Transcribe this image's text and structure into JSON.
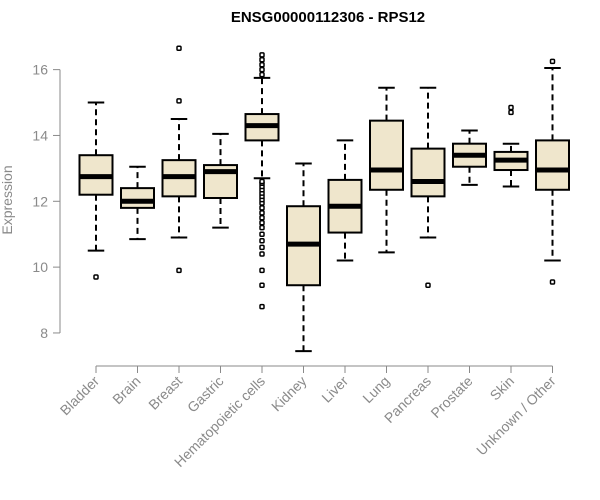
{
  "chart_data": {
    "type": "boxplot",
    "title": "ENSG00000112306 - RPS12",
    "xlabel": "",
    "ylabel": "Expression",
    "ylim": [
      7.3,
      16.9
    ],
    "yticks": [
      8,
      10,
      12,
      14,
      16
    ],
    "grid": false,
    "legend": "none",
    "colors": {
      "box_fill": "#efe6cc",
      "stroke": "#000000",
      "axis": "#8a8a8a"
    },
    "categories": [
      "Bladder",
      "Brain",
      "Breast",
      "Gastric",
      "Hematopoietic cells",
      "Kidney",
      "Liver",
      "Lung",
      "Pancreas",
      "Prostate",
      "Skin",
      "Unknown / Other"
    ],
    "boxes": [
      {
        "label": "Bladder",
        "whisker_low": 10.5,
        "q1": 12.2,
        "median": 12.75,
        "q3": 13.4,
        "whisker_high": 15.0,
        "outliers": [
          9.7
        ]
      },
      {
        "label": "Brain",
        "whisker_low": 10.85,
        "q1": 11.8,
        "median": 12.0,
        "q3": 12.4,
        "whisker_high": 13.05,
        "outliers": []
      },
      {
        "label": "Breast",
        "whisker_low": 10.9,
        "q1": 12.15,
        "median": 12.75,
        "q3": 13.25,
        "whisker_high": 14.5,
        "outliers": [
          9.9,
          15.05,
          16.65
        ]
      },
      {
        "label": "Gastric",
        "whisker_low": 11.2,
        "q1": 12.1,
        "median": 12.9,
        "q3": 13.1,
        "whisker_high": 14.05,
        "outliers": []
      },
      {
        "label": "Hematopoietic cells",
        "whisker_low": 12.7,
        "q1": 13.85,
        "median": 14.3,
        "q3": 14.65,
        "whisker_high": 15.75,
        "outliers": [
          8.8,
          9.45,
          9.9,
          10.4,
          10.6,
          10.8,
          11.0,
          11.2,
          11.35,
          11.5,
          11.65,
          11.8,
          11.95,
          12.05,
          12.15,
          12.25,
          12.35,
          12.45,
          12.55,
          12.6,
          15.85,
          16.0,
          16.15,
          16.3,
          16.45
        ]
      },
      {
        "label": "Kidney",
        "whisker_low": 7.45,
        "q1": 9.45,
        "median": 10.7,
        "q3": 11.85,
        "whisker_high": 13.15,
        "outliers": []
      },
      {
        "label": "Liver",
        "whisker_low": 10.2,
        "q1": 11.05,
        "median": 11.85,
        "q3": 12.65,
        "whisker_high": 13.85,
        "outliers": []
      },
      {
        "label": "Lung",
        "whisker_low": 10.45,
        "q1": 12.35,
        "median": 12.95,
        "q3": 14.45,
        "whisker_high": 15.45,
        "outliers": []
      },
      {
        "label": "Pancreas",
        "whisker_low": 10.9,
        "q1": 12.15,
        "median": 12.6,
        "q3": 13.6,
        "whisker_high": 15.45,
        "outliers": [
          9.45
        ]
      },
      {
        "label": "Prostate",
        "whisker_low": 12.5,
        "q1": 13.05,
        "median": 13.4,
        "q3": 13.75,
        "whisker_high": 14.15,
        "outliers": []
      },
      {
        "label": "Skin",
        "whisker_low": 12.45,
        "q1": 12.95,
        "median": 13.25,
        "q3": 13.5,
        "whisker_high": 13.75,
        "outliers": [
          14.7,
          14.85
        ]
      },
      {
        "label": "Unknown / Other",
        "whisker_low": 10.2,
        "q1": 12.35,
        "median": 12.95,
        "q3": 13.85,
        "whisker_high": 16.05,
        "outliers": [
          9.55,
          16.25
        ]
      }
    ]
  }
}
